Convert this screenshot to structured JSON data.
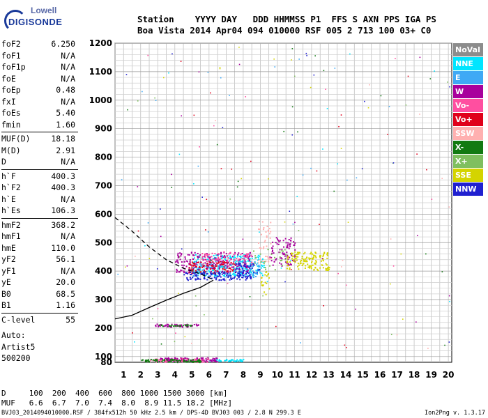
{
  "logo": {
    "line1": "Lowell",
    "line2": "DIGISONDE"
  },
  "header": {
    "line1": "Station    YYYY DAY   DDD HHMMSS P1  FFS S AXN PPS IGA PS",
    "line2": "Boa Vista 2014 Apr04 094 010000 RSF 005 2 713 100 03+ C0"
  },
  "params": [
    {
      "k": "foF2",
      "v": "6.250"
    },
    {
      "k": "foF1",
      "v": "N/A"
    },
    {
      "k": "foF1p",
      "v": "N/A"
    },
    {
      "k": "foE",
      "v": "N/A"
    },
    {
      "k": "foEp",
      "v": "0.48"
    },
    {
      "k": "fxI",
      "v": "N/A"
    },
    {
      "k": "foEs",
      "v": "5.40"
    },
    {
      "k": "fmin",
      "v": "1.60"
    },
    {
      "k": "MUF(D)",
      "v": "18.18"
    },
    {
      "k": "M(D)",
      "v": "2.91"
    },
    {
      "k": "D",
      "v": "N/A"
    },
    {
      "k": "h`F",
      "v": "400.3"
    },
    {
      "k": "h`F2",
      "v": "400.3"
    },
    {
      "k": "h`E",
      "v": "N/A"
    },
    {
      "k": "h`Es",
      "v": "106.3"
    },
    {
      "k": "hmF2",
      "v": "368.2"
    },
    {
      "k": "hmF1",
      "v": "N/A"
    },
    {
      "k": "hmE",
      "v": "110.0"
    },
    {
      "k": "yF2",
      "v": "56.1"
    },
    {
      "k": "yF1",
      "v": "N/A"
    },
    {
      "k": "yE",
      "v": "20.0"
    },
    {
      "k": "B0",
      "v": "68.5"
    },
    {
      "k": "B1",
      "v": "1.16"
    },
    {
      "k": "C-level",
      "v": "55"
    }
  ],
  "autoscale": {
    "line1": "Auto:",
    "line2": "Artist5",
    "line3": "500200"
  },
  "legend": [
    {
      "label": "NoVal",
      "bg": "#8c8c8c",
      "fg": "#ffffff"
    },
    {
      "label": "NNE",
      "bg": "#00e5ff",
      "fg": "#ffffff"
    },
    {
      "label": "E",
      "bg": "#3fa9f5",
      "fg": "#ffffff"
    },
    {
      "label": "W",
      "bg": "#a8009c",
      "fg": "#ffffff"
    },
    {
      "label": "Vo-",
      "bg": "#ff4fa0",
      "fg": "#ffffff"
    },
    {
      "label": "Vo+",
      "bg": "#e0001a",
      "fg": "#ffffff"
    },
    {
      "label": "SSW",
      "bg": "#ffb0b0",
      "fg": "#ffffff"
    },
    {
      "label": "X-",
      "bg": "#127a12",
      "fg": "#ffffff"
    },
    {
      "label": "X+",
      "bg": "#7fbf5f",
      "fg": "#ffffff"
    },
    {
      "label": "SSE",
      "bg": "#d4d400",
      "fg": "#ffffff"
    },
    {
      "label": "NNW",
      "bg": "#2020d0",
      "fg": "#ffffff"
    }
  ],
  "bottom": {
    "row1": "D     100  200  400  600  800 1000 1500 3000 [km]",
    "row2": "MUF   6.6  6.7  7.0  7.4  8.0  8.9 11.5 18.2 [MHz]"
  },
  "footer": "BVJ03_2014094010000.RSF / 384fx512h 50 kHz 2.5 km / DPS-4D BVJ03 003 / 2.8 N 299.3 E",
  "version": "Ion2Png v. 1.3.17",
  "chart_data": {
    "type": "scatter",
    "title": "",
    "xlabel": "",
    "ylabel": "",
    "xlim": [
      0.5,
      20.2
    ],
    "ylim": [
      80,
      1200
    ],
    "x_ticks": [
      1,
      2,
      3,
      4,
      5,
      6,
      7,
      8,
      9,
      10,
      11,
      12,
      13,
      14,
      15,
      16,
      17,
      18,
      19,
      20
    ],
    "y_ticks": [
      80,
      100,
      200,
      300,
      400,
      500,
      600,
      700,
      800,
      900,
      1000,
      1100,
      1200
    ],
    "grid": true,
    "series": [
      {
        "name": "NNE",
        "color": "#00e5ff",
        "clusters": [
          {
            "x": [
              5.0,
              9.2
            ],
            "y": [
              385,
              460
            ],
            "n": 260
          },
          {
            "x": [
              6.0,
              8.0
            ],
            "y": [
              85,
              92
            ],
            "n": 40
          }
        ]
      },
      {
        "name": "E",
        "color": "#3fa9f5",
        "clusters": [
          {
            "x": [
              5.0,
              9.0
            ],
            "y": [
              380,
              440
            ],
            "n": 120
          }
        ]
      },
      {
        "name": "W",
        "color": "#a8009c",
        "clusters": [
          {
            "x": [
              4.0,
              8.5
            ],
            "y": [
              395,
              470
            ],
            "n": 220
          },
          {
            "x": [
              9.5,
              11.0
            ],
            "y": [
              420,
              520
            ],
            "n": 90
          },
          {
            "x": [
              3.0,
              6.5
            ],
            "y": [
              84,
              98
            ],
            "n": 120
          },
          {
            "x": [
              2.8,
              5.4
            ],
            "y": [
              206,
              216
            ],
            "n": 50
          }
        ]
      },
      {
        "name": "Vo-",
        "color": "#ff4fa0",
        "clusters": [
          {
            "x": [
              5.5,
              8.5
            ],
            "y": [
              420,
              470
            ],
            "n": 80
          },
          {
            "x": [
              2.5,
              6.0
            ],
            "y": [
              82,
              95
            ],
            "n": 60
          }
        ]
      },
      {
        "name": "Vo+",
        "color": "#e0001a",
        "clusters": [
          {
            "x": [
              4.8,
              7.5
            ],
            "y": [
              395,
              435
            ],
            "n": 80
          }
        ]
      },
      {
        "name": "SSW",
        "color": "#ffb0b0",
        "clusters": [
          {
            "x": [
              8.8,
              9.6
            ],
            "y": [
              430,
              580
            ],
            "n": 40
          }
        ]
      },
      {
        "name": "X-",
        "color": "#127a12",
        "clusters": [
          {
            "x": [
              2.0,
              5.5
            ],
            "y": [
              82,
              92
            ],
            "n": 80
          },
          {
            "x": [
              3.0,
              5.0
            ],
            "y": [
              208,
              214
            ],
            "n": 25
          }
        ]
      },
      {
        "name": "X+",
        "color": "#7fbf5f",
        "clusters": [
          {
            "x": [
              8.5,
              10.5
            ],
            "y": [
              400,
              480
            ],
            "n": 25
          }
        ]
      },
      {
        "name": "SSE",
        "color": "#d4d400",
        "clusters": [
          {
            "x": [
              10.5,
              13.0
            ],
            "y": [
              405,
              470
            ],
            "n": 140
          },
          {
            "x": [
              9.0,
              9.5
            ],
            "y": [
              320,
              400
            ],
            "n": 20
          }
        ]
      },
      {
        "name": "NNW",
        "color": "#2020d0",
        "clusters": [
          {
            "x": [
              4.5,
              8.5
            ],
            "y": [
              370,
              400
            ],
            "n": 120
          },
          {
            "x": [
              7.5,
              9.0
            ],
            "y": [
              380,
              430
            ],
            "n": 40
          }
        ]
      }
    ],
    "profile_curve": [
      [
        0.5,
        232
      ],
      [
        1.5,
        245
      ],
      [
        2.5,
        272
      ],
      [
        3.5,
        298
      ],
      [
        4.5,
        322
      ],
      [
        5.5,
        343
      ],
      [
        6.25,
        368
      ]
    ],
    "profile_dashed": [
      [
        0.5,
        588
      ],
      [
        1.5,
        540
      ],
      [
        2.5,
        485
      ],
      [
        3.5,
        440
      ],
      [
        4.5,
        410
      ],
      [
        5.5,
        390
      ],
      [
        6.25,
        370
      ]
    ]
  }
}
